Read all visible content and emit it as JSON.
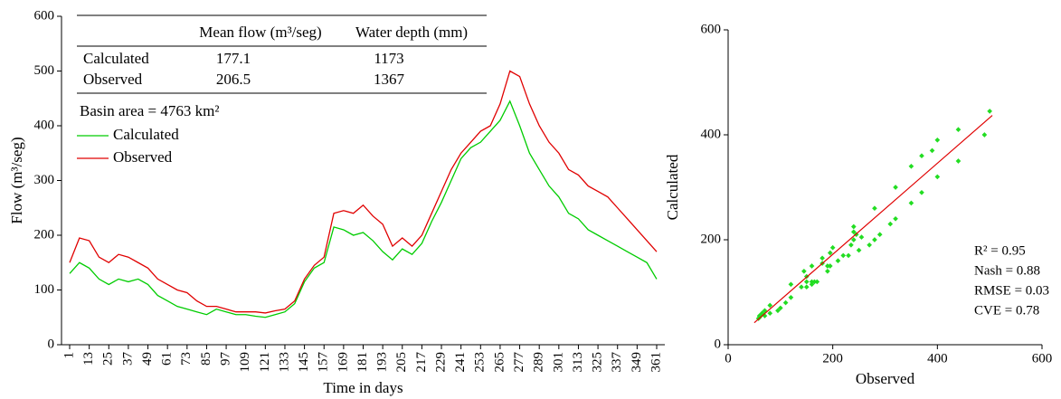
{
  "chart_data": [
    {
      "type": "line",
      "xlabel": "Time in days",
      "ylabel": "Flow (m³/seg)",
      "x": [
        1,
        7,
        13,
        19,
        25,
        31,
        37,
        43,
        49,
        55,
        61,
        67,
        73,
        79,
        85,
        91,
        97,
        103,
        109,
        115,
        121,
        127,
        133,
        139,
        145,
        151,
        157,
        163,
        169,
        175,
        181,
        187,
        193,
        199,
        205,
        211,
        217,
        223,
        229,
        235,
        241,
        247,
        253,
        259,
        265,
        271,
        277,
        283,
        289,
        295,
        301,
        307,
        313,
        319,
        325,
        331,
        337,
        343,
        349,
        355,
        361
      ],
      "series": [
        {
          "name": "Calculated",
          "color": "#00cc00",
          "values": [
            130,
            150,
            140,
            120,
            110,
            120,
            115,
            120,
            110,
            90,
            80,
            70,
            65,
            60,
            55,
            65,
            60,
            55,
            55,
            52,
            50,
            55,
            60,
            75,
            115,
            140,
            150,
            215,
            210,
            200,
            205,
            190,
            170,
            155,
            175,
            165,
            185,
            225,
            260,
            300,
            340,
            360,
            370,
            390,
            410,
            445,
            400,
            350,
            320,
            290,
            270,
            240,
            230,
            210,
            200,
            190,
            180,
            170,
            160,
            150,
            120
          ]
        },
        {
          "name": "Observed",
          "color": "#e00000",
          "values": [
            150,
            195,
            190,
            160,
            150,
            165,
            160,
            150,
            140,
            120,
            110,
            100,
            95,
            80,
            70,
            70,
            65,
            60,
            60,
            60,
            58,
            62,
            65,
            80,
            120,
            145,
            160,
            240,
            245,
            240,
            255,
            235,
            220,
            180,
            195,
            180,
            200,
            240,
            280,
            320,
            350,
            370,
            390,
            400,
            440,
            500,
            490,
            440,
            400,
            370,
            350,
            320,
            310,
            290,
            280,
            270,
            250,
            230,
            210,
            190,
            170
          ]
        }
      ],
      "xlim": [
        -4,
        366
      ],
      "xticks": [
        1,
        13,
        25,
        37,
        49,
        61,
        73,
        85,
        97,
        109,
        121,
        133,
        145,
        157,
        169,
        181,
        193,
        205,
        217,
        229,
        241,
        253,
        265,
        277,
        289,
        301,
        313,
        325,
        337,
        349,
        361
      ],
      "ylim": [
        0,
        600
      ],
      "yticks": [
        0,
        100,
        200,
        300,
        400,
        500,
        600
      ],
      "table": {
        "header": [
          "Mean flow (m³/seg)",
          "Water depth (mm)"
        ],
        "rows": [
          [
            "Calculated",
            "177.1",
            "1173"
          ],
          [
            "Observed",
            "206.5",
            "1367"
          ]
        ]
      },
      "annotation": "Basin area = 4763 km²"
    },
    {
      "type": "scatter",
      "xlabel": "Observed",
      "ylabel": "Calculated",
      "color": "#22dd22",
      "x": [
        150,
        195,
        190,
        160,
        150,
        165,
        160,
        150,
        140,
        120,
        110,
        100,
        95,
        80,
        70,
        70,
        65,
        60,
        60,
        60,
        58,
        62,
        65,
        80,
        120,
        145,
        160,
        240,
        245,
        240,
        255,
        235,
        220,
        180,
        195,
        180,
        200,
        240,
        280,
        320,
        350,
        370,
        390,
        400,
        440,
        500,
        490,
        440,
        400,
        370,
        350,
        320,
        310,
        290,
        280,
        270,
        250,
        230,
        210,
        190,
        170
      ],
      "y": [
        130,
        150,
        140,
        120,
        110,
        120,
        115,
        120,
        110,
        90,
        80,
        70,
        65,
        60,
        55,
        65,
        60,
        55,
        55,
        52,
        50,
        55,
        60,
        75,
        115,
        140,
        150,
        215,
        210,
        200,
        205,
        190,
        170,
        155,
        175,
        165,
        185,
        225,
        260,
        300,
        340,
        360,
        370,
        390,
        410,
        445,
        400,
        350,
        320,
        290,
        270,
        240,
        230,
        210,
        200,
        190,
        180,
        170,
        160,
        150,
        120
      ],
      "fit_line": {
        "color": "#e00000",
        "x": [
          50,
          505
        ],
        "y": [
          42,
          437
        ]
      },
      "xlim": [
        0,
        600
      ],
      "xticks": [
        0,
        200,
        400,
        600
      ],
      "ylim": [
        0,
        600
      ],
      "yticks": [
        0,
        200,
        400,
        600
      ],
      "annotations": [
        "R² = 0.95",
        "Nash = 0.88",
        "RMSE = 0.03",
        "CVE = 0.78"
      ]
    }
  ]
}
